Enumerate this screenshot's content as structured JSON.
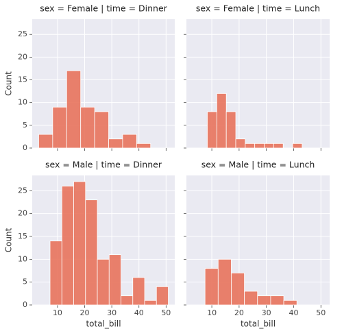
{
  "chart_data": [
    {
      "type": "histogram",
      "title": "sex = Female | time = Dinner",
      "ylabel": "Count",
      "bins": [
        3.07,
        8.22,
        13.38,
        18.53,
        23.69,
        28.84,
        33.99,
        39.15,
        44.3
      ],
      "values": [
        3,
        9,
        17,
        9,
        8,
        2,
        3,
        1
      ],
      "color": "#e8735c",
      "xlim": [
        0.68,
        53.2
      ],
      "xticks": [
        10,
        20,
        30,
        40,
        50
      ],
      "ylim": [
        0,
        28.35
      ],
      "yticks": [
        0,
        5,
        10,
        15,
        20,
        25
      ],
      "grid": true
    },
    {
      "type": "histogram",
      "title": "sex = Female | time = Lunch",
      "bins": [
        8.35,
        11.83,
        15.3,
        18.78,
        22.25,
        25.73,
        29.21,
        32.68,
        36.16,
        39.63,
        43.11
      ],
      "values": [
        8,
        12,
        8,
        2,
        1,
        1,
        1,
        1,
        0,
        1
      ],
      "color": "#e8735c",
      "xlim": [
        0.68,
        53.2
      ],
      "xticks": [
        10,
        20,
        30,
        40,
        50
      ],
      "ylim": [
        0,
        28.35
      ],
      "yticks": [
        0,
        5,
        10,
        15,
        20,
        25
      ],
      "grid": true
    },
    {
      "type": "histogram",
      "title": "sex = Male | time = Dinner",
      "ylabel": "Count",
      "xlabel": "total_bill",
      "bins": [
        7.25,
        11.61,
        15.96,
        20.32,
        24.67,
        29.03,
        33.39,
        37.74,
        42.1,
        46.45,
        50.81
      ],
      "values": [
        14,
        26,
        27,
        23,
        10,
        11,
        2,
        6,
        1,
        4
      ],
      "color": "#e8735c",
      "xlim": [
        0.68,
        53.2
      ],
      "xticks": [
        10,
        20,
        30,
        40,
        50
      ],
      "ylim": [
        0,
        28.35
      ],
      "yticks": [
        0,
        5,
        10,
        15,
        20,
        25
      ],
      "grid": true
    },
    {
      "type": "histogram",
      "title": "sex = Male | time = Lunch",
      "xlabel": "total_bill",
      "bins": [
        7.51,
        12.32,
        17.13,
        21.94,
        26.75,
        31.57,
        36.38,
        41.19
      ],
      "values": [
        8,
        10,
        7,
        3,
        2,
        2,
        1
      ],
      "color": "#e8735c",
      "xlim": [
        0.68,
        53.2
      ],
      "xticks": [
        10,
        20,
        30,
        40,
        50
      ],
      "ylim": [
        0,
        28.35
      ],
      "yticks": [
        0,
        5,
        10,
        15,
        20,
        25
      ],
      "grid": true
    }
  ]
}
